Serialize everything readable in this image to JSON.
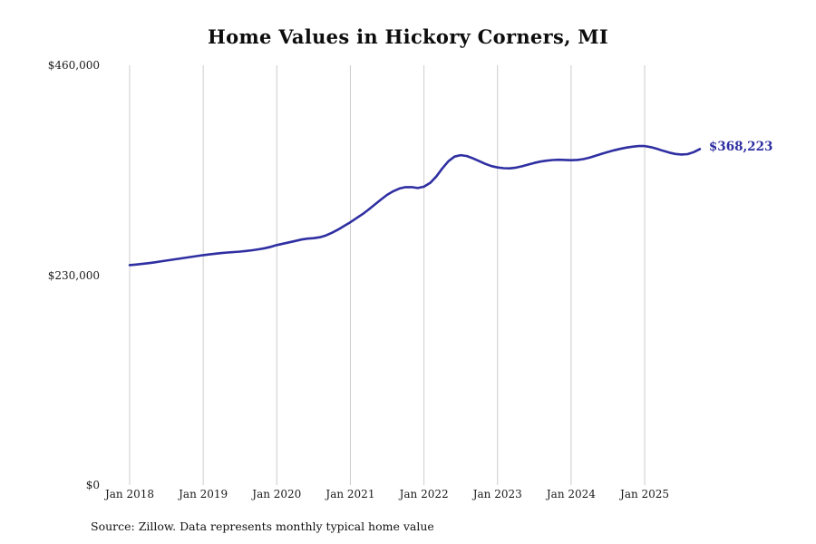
{
  "chart": {
    "title": "Home Values in Hickory Corners, MI",
    "source": "Source: Zillow. Data represents monthly typical home value",
    "latest_value_label": "$368,223"
  },
  "chart_data": {
    "type": "line",
    "title": "Home Values in Hickory Corners, MI",
    "x_start_month": "2018-01",
    "x_end_month": "2025-10",
    "x_tick_labels": [
      "Jan 2018",
      "Jan 2019",
      "Jan 2020",
      "Jan 2021",
      "Jan 2022",
      "Jan 2023",
      "Jan 2024",
      "Jan 2025"
    ],
    "y_ticks": [
      0,
      230000,
      460000
    ],
    "y_tick_labels": [
      "$0",
      "$230,000",
      "$460,000"
    ],
    "ylim": [
      0,
      460000
    ],
    "grid": "vertical-only",
    "legend": "none",
    "line_color": "#2f2fa2",
    "grid_color": "#cccccc",
    "latest_value": 368223,
    "series": [
      {
        "name": "Monthly typical home value",
        "values": [
          241000,
          241600,
          242300,
          243100,
          244000,
          245000,
          246000,
          247000,
          248000,
          249000,
          250000,
          251000,
          252000,
          252800,
          253500,
          254200,
          254800,
          255300,
          255800,
          256500,
          257300,
          258300,
          259500,
          261000,
          263000,
          264500,
          266000,
          267500,
          269000,
          270000,
          270500,
          271500,
          273500,
          276500,
          280000,
          284000,
          288000,
          292500,
          297000,
          302000,
          307500,
          313000,
          318000,
          322000,
          325000,
          326500,
          326500,
          325500,
          327000,
          331000,
          338000,
          347000,
          355000,
          360000,
          361500,
          360500,
          358000,
          355000,
          352000,
          349500,
          348000,
          347200,
          347000,
          347800,
          349300,
          351200,
          353000,
          354500,
          355500,
          356200,
          356500,
          356300,
          356000,
          356300,
          357200,
          358800,
          360800,
          363000,
          365000,
          366800,
          368400,
          369800,
          370800,
          371500,
          371500,
          370300,
          368500,
          366300,
          364300,
          362800,
          362200,
          362600,
          364800,
          368223
        ]
      }
    ]
  }
}
